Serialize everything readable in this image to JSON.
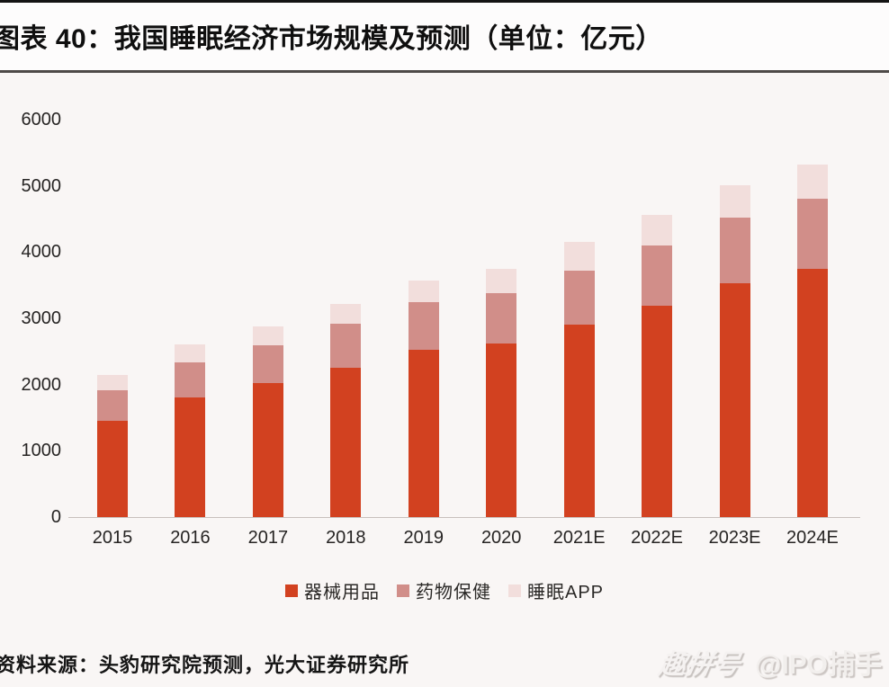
{
  "header": {
    "title": "图表 40：我国睡眠经济市场规模及预测（单位：亿元）"
  },
  "chart_data": {
    "type": "bar",
    "subtype": "stacked",
    "title": "我国睡眠经济市场规模及预测",
    "unit": "亿元",
    "categories": [
      "2015",
      "2016",
      "2017",
      "2018",
      "2019",
      "2020",
      "2021E",
      "2022E",
      "2023E",
      "2024E"
    ],
    "series": [
      {
        "name": "器械用品",
        "color": "#d24120",
        "values": [
          1450,
          1810,
          2020,
          2260,
          2520,
          2620,
          2900,
          3190,
          3530,
          3740
        ]
      },
      {
        "name": "药物保健",
        "color": "#d18e89",
        "values": [
          470,
          520,
          570,
          660,
          720,
          760,
          820,
          910,
          990,
          1060
        ]
      },
      {
        "name": "睡眠APP",
        "color": "#f2dedc",
        "values": [
          230,
          270,
          290,
          300,
          330,
          370,
          430,
          460,
          490,
          520
        ]
      }
    ],
    "totals": [
      2150,
      2600,
      2880,
      3220,
      3570,
      3750,
      4150,
      4560,
      5010,
      5320
    ],
    "xlabel": "",
    "ylabel": "",
    "ylim": [
      0,
      6000
    ],
    "yticks": [
      0,
      1000,
      2000,
      3000,
      4000,
      5000,
      6000
    ],
    "grid": false,
    "legend_position": "bottom"
  },
  "footer": {
    "source": "资料来源：头豹研究院预测，光大证券研究所",
    "watermark_logo": "趣拼号",
    "watermark_handle": "@IPO捕手"
  }
}
